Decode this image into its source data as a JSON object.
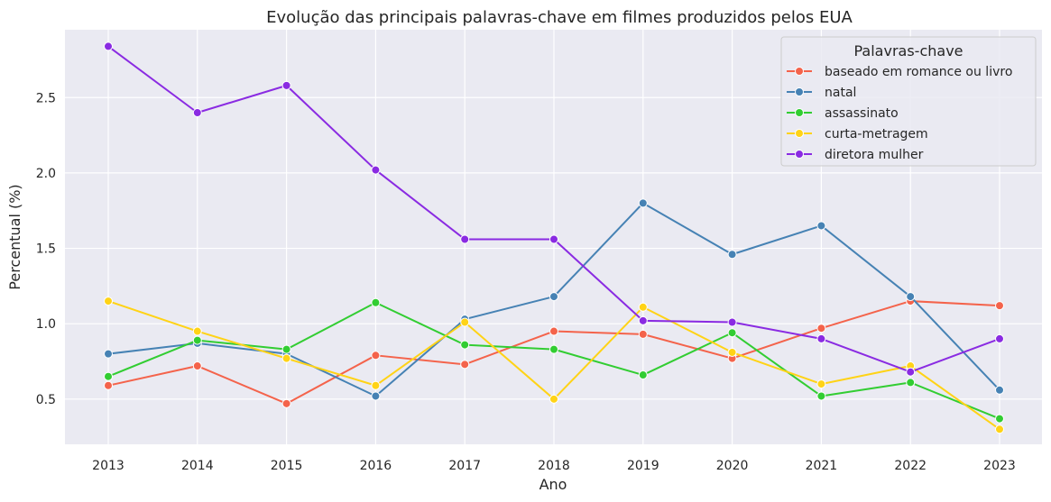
{
  "chart_data": {
    "type": "line",
    "title": "Evolução das principais palavras-chave em filmes produzidos pelos EUA",
    "xlabel": "Ano",
    "ylabel": "Percentual (%)",
    "x": [
      "2013",
      "2014",
      "2015",
      "2016",
      "2017",
      "2018",
      "2019",
      "2020",
      "2021",
      "2022",
      "2023"
    ],
    "yticks": [
      "0.5",
      "1.0",
      "1.5",
      "2.0",
      "2.5"
    ],
    "ylim": [
      0.2,
      2.95
    ],
    "grid": true,
    "legend": {
      "title": "Palavras-chave",
      "placement": "top-right"
    },
    "series": [
      {
        "name": "baseado em romance ou livro",
        "color": "#f4634b",
        "values": [
          0.59,
          0.72,
          0.47,
          0.79,
          0.73,
          0.95,
          0.93,
          0.77,
          0.97,
          1.15,
          1.12
        ]
      },
      {
        "name": "natal",
        "color": "#4682b4",
        "values": [
          0.8,
          0.87,
          0.8,
          0.52,
          1.03,
          1.18,
          1.8,
          1.46,
          1.65,
          1.18,
          0.56
        ]
      },
      {
        "name": "assassinato",
        "color": "#32cd32",
        "values": [
          0.65,
          0.89,
          0.83,
          1.14,
          0.86,
          0.83,
          0.66,
          0.94,
          0.52,
          0.61,
          0.37
        ]
      },
      {
        "name": "curta-metragem",
        "color": "#ffd316",
        "values": [
          1.15,
          0.95,
          0.77,
          0.59,
          1.01,
          0.5,
          1.11,
          0.81,
          0.6,
          0.72,
          0.3
        ]
      },
      {
        "name": "diretora mulher",
        "color": "#8a2be2",
        "values": [
          2.84,
          2.4,
          2.58,
          2.02,
          1.56,
          1.56,
          1.02,
          1.01,
          0.9,
          0.68,
          0.9
        ]
      }
    ]
  }
}
